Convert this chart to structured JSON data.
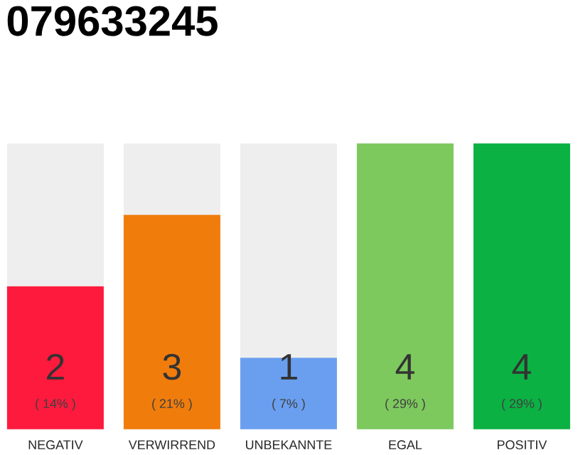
{
  "chart_data": {
    "type": "bar",
    "title": "079633245",
    "categories": [
      "NEGATIV",
      "VERWIRREND",
      "UNBEKANNTE",
      "EGAL",
      "POSITIV"
    ],
    "values": [
      2,
      3,
      1,
      4,
      4
    ],
    "colors": [
      "#fe1a3d",
      "#f07c0c",
      "#6a9ff0",
      "#7dc95e",
      "#0bb143"
    ],
    "ylim": [
      0,
      4
    ],
    "data_labels": true,
    "tick_labels": "x",
    "annotations": [
      "( 14% )",
      "( 21% )",
      "( 7% )",
      "( 29% )",
      "( 29% )"
    ]
  }
}
